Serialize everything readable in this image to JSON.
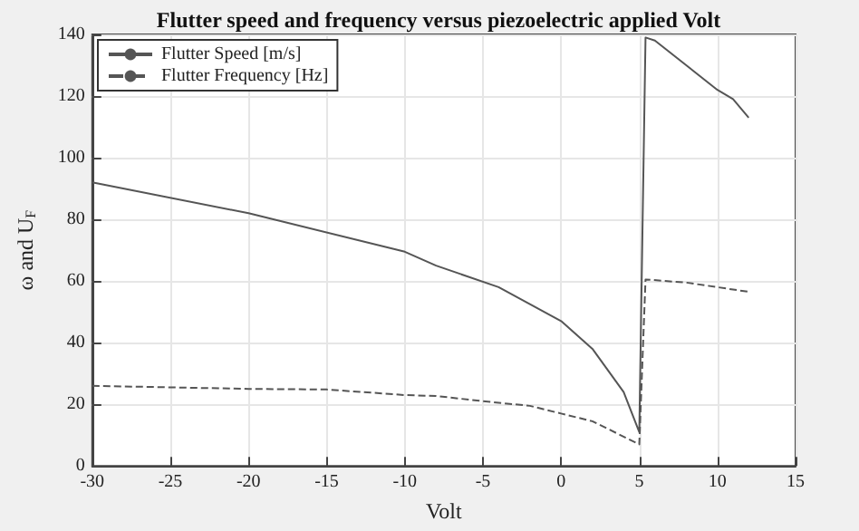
{
  "chart_data": {
    "type": "line",
    "title": "Flutter speed and frequency versus piezoelectric applied Volt",
    "xlabel": "Volt",
    "ylabel": "ω and U$_{F}$",
    "xlim": [
      -30,
      15
    ],
    "xticks": [
      -30,
      -25,
      -20,
      -15,
      -10,
      -5,
      0,
      5,
      10,
      15
    ],
    "ylim": [
      0,
      140
    ],
    "yticks": [
      0,
      20,
      40,
      60,
      80,
      100,
      120,
      140
    ],
    "grid": true,
    "legend": "top left",
    "marker": "none",
    "series": [
      {
        "name": "Flutter Speed [m/s]",
        "color": "#555555",
        "line_style": "solid",
        "x": [
          -30,
          -20,
          -10,
          -8,
          -4,
          0,
          2,
          4,
          5,
          5.4,
          6,
          10,
          11,
          12
        ],
        "values": [
          92,
          82,
          69.5,
          65,
          58,
          47,
          38,
          24,
          11,
          139,
          138,
          122,
          119,
          113
        ]
      },
      {
        "name": "Flutter Frequency [Hz]",
        "color": "#555555",
        "line_style": "dashed",
        "x": [
          -30,
          -20,
          -15,
          -10,
          -8,
          -5,
          -2,
          0,
          2,
          5,
          5.4,
          8,
          10,
          12
        ],
        "values": [
          26,
          25,
          24.8,
          23,
          22.7,
          21,
          19.5,
          17,
          14.5,
          7,
          60.5,
          59.5,
          58,
          56.5
        ]
      }
    ]
  }
}
